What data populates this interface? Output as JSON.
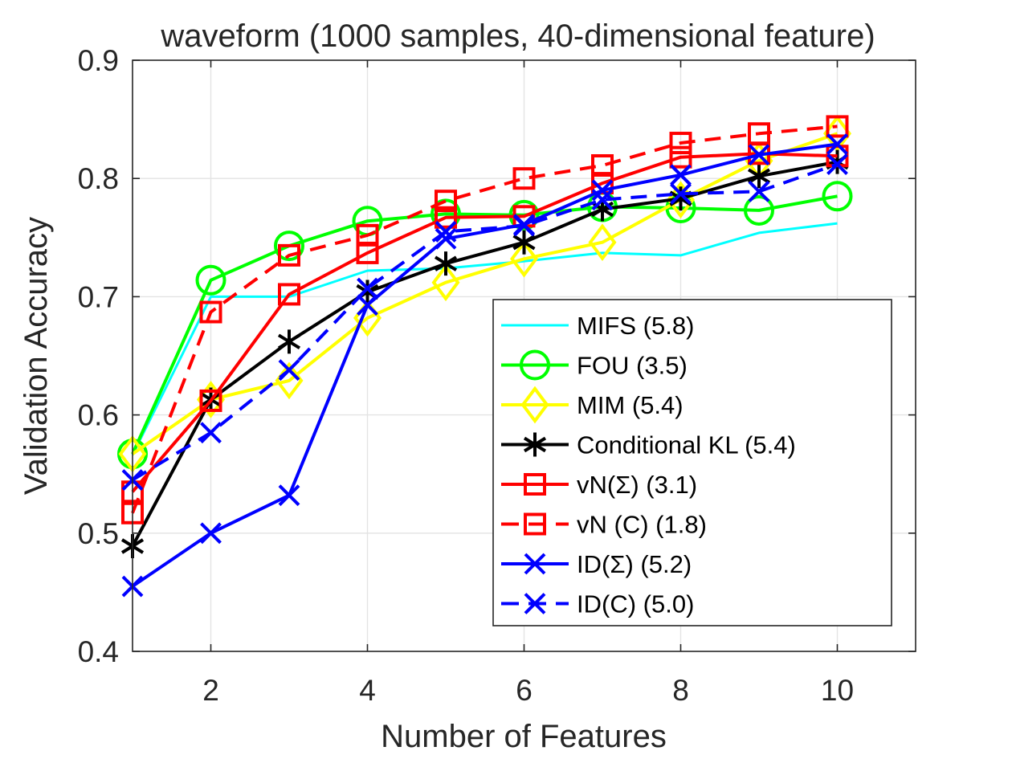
{
  "chart_data": {
    "type": "line",
    "title": "waveform (1000 samples, 40-dimensional feature)",
    "xlabel": "Number of Features",
    "ylabel": "Validation Accuracy",
    "xlim": [
      1,
      11
    ],
    "ylim": [
      0.4,
      0.9
    ],
    "xticks": [
      2,
      4,
      6,
      8,
      10
    ],
    "xtick_labels": [
      "2",
      "4",
      "6",
      "8",
      "10"
    ],
    "yticks": [
      0.4,
      0.5,
      0.6,
      0.7,
      0.8,
      0.9
    ],
    "ytick_labels": [
      "0.4",
      "0.5",
      "0.6",
      "0.7",
      "0.8",
      "0.9"
    ],
    "grid": true,
    "legend_position": "bottom-right",
    "x": [
      1,
      2,
      3,
      4,
      5,
      6,
      7,
      8,
      9,
      10
    ],
    "series": [
      {
        "name": "MIFS (5.8)",
        "color": "#00ffff",
        "dash": "solid",
        "marker": "none",
        "values": [
          0.566,
          0.7,
          0.7,
          0.722,
          0.724,
          0.73,
          0.737,
          0.735,
          0.754,
          0.762
        ]
      },
      {
        "name": "FOU (3.5)",
        "color": "#00ff00",
        "dash": "solid",
        "marker": "circle",
        "values": [
          0.567,
          0.714,
          0.743,
          0.764,
          0.77,
          0.769,
          0.776,
          0.775,
          0.773,
          0.785
        ]
      },
      {
        "name": "MIM (5.4)",
        "color": "#ffff00",
        "dash": "solid",
        "marker": "diamond",
        "values": [
          0.567,
          0.613,
          0.629,
          0.682,
          0.712,
          0.732,
          0.746,
          0.782,
          0.815,
          0.838
        ]
      },
      {
        "name": "Conditional KL (5.4)",
        "color": "#000000",
        "dash": "solid",
        "marker": "asterisk",
        "values": [
          0.489,
          0.613,
          0.662,
          0.704,
          0.728,
          0.746,
          0.774,
          0.783,
          0.802,
          0.814
        ]
      },
      {
        "name": "vN(Σ) (3.1)",
        "color": "#ff0000",
        "dash": "solid",
        "marker": "square",
        "values": [
          0.535,
          0.612,
          0.702,
          0.737,
          0.767,
          0.768,
          0.796,
          0.818,
          0.821,
          0.819
        ]
      },
      {
        "name": "vN (C) (1.8)",
        "color": "#ff0000",
        "dash": "dashed",
        "marker": "square",
        "values": [
          0.517,
          0.687,
          0.735,
          0.752,
          0.781,
          0.8,
          0.811,
          0.83,
          0.838,
          0.844
        ]
      },
      {
        "name": "ID(Σ) (5.2)",
        "color": "#0000ff",
        "dash": "solid",
        "marker": "x",
        "values": [
          0.455,
          0.5,
          0.532,
          0.693,
          0.749,
          0.761,
          0.79,
          0.803,
          0.82,
          0.829
        ]
      },
      {
        "name": "ID(C) (5.0)",
        "color": "#0000ff",
        "dash": "dashed",
        "marker": "x",
        "values": [
          0.545,
          0.585,
          0.638,
          0.707,
          0.755,
          0.76,
          0.782,
          0.787,
          0.789,
          0.812
        ]
      }
    ]
  }
}
